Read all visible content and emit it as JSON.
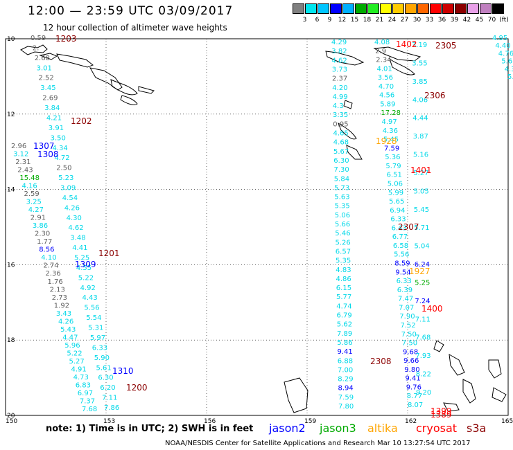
{
  "header": {
    "title": "12:00 — 23:59 UTC 03/09/2017",
    "subtitle": "12 hour collection of altimeter wave heights"
  },
  "scale": {
    "labels": [
      "3",
      "6",
      "9",
      "12",
      "15",
      "18",
      "21",
      "24",
      "27",
      "30",
      "33",
      "36",
      "39",
      "42",
      "45",
      "70"
    ],
    "unit": "(ft)",
    "colors": [
      "#808080",
      "#00e5ee",
      "#00c5ff",
      "#0000ff",
      "#00b0ff",
      "#00aa00",
      "#22ee22",
      "#ffff00",
      "#ffcc00",
      "#ffa500",
      "#ff6600",
      "#ff0000",
      "#cc0000",
      "#8b0000",
      "#e8a0e8",
      "#c080c0",
      "#000000"
    ]
  },
  "axes": {
    "lon_labels": [
      "150",
      "153",
      "156",
      "159",
      "162",
      "165"
    ],
    "lat_labels": [
      "10",
      "12",
      "14",
      "16",
      "18",
      "20"
    ]
  },
  "colors": {
    "jason2": "#0000ff",
    "jason3": "#00aa00",
    "altika": "#ffa500",
    "cryosat": "#ff0000",
    "s3a": "#8b0000",
    "cyan": "#00d8e8",
    "gray": "#606060"
  },
  "tracks": {
    "west": [
      {
        "v": "0.59",
        "c": "gray"
      },
      {
        "v": "2.",
        "c": "gray"
      },
      {
        "v": "2.68",
        "c": "gray"
      },
      {
        "v": "3.01",
        "c": "cyan"
      },
      {
        "v": "2.52",
        "c": "gray"
      },
      {
        "v": "3.45",
        "c": "cyan"
      },
      {
        "v": "2.69",
        "c": "gray"
      },
      {
        "v": "3.84",
        "c": "cyan"
      },
      {
        "v": "4.21",
        "c": "cyan"
      },
      {
        "v": "3.91",
        "c": "cyan"
      },
      {
        "v": "3.50",
        "c": "cyan"
      },
      {
        "v": "4.34",
        "c": "cyan"
      },
      {
        "v": "4.72",
        "c": "cyan"
      },
      {
        "v": "2.50",
        "c": "gray"
      },
      {
        "v": "5.23",
        "c": "cyan"
      },
      {
        "v": "3.09",
        "c": "cyan"
      },
      {
        "v": "4.54",
        "c": "cyan"
      },
      {
        "v": "4.26",
        "c": "cyan"
      },
      {
        "v": "4.30",
        "c": "cyan"
      },
      {
        "v": "4.62",
        "c": "cyan"
      },
      {
        "v": "3.48",
        "c": "cyan"
      },
      {
        "v": "4.41",
        "c": "cyan"
      },
      {
        "v": "5.25",
        "c": "cyan"
      },
      {
        "v": "4.55",
        "c": "cyan"
      },
      {
        "v": "5.22",
        "c": "cyan"
      },
      {
        "v": "4.92",
        "c": "cyan"
      },
      {
        "v": "4.43",
        "c": "cyan"
      },
      {
        "v": "5.56",
        "c": "cyan"
      },
      {
        "v": "5.54",
        "c": "cyan"
      },
      {
        "v": "5.31",
        "c": "cyan"
      },
      {
        "v": "5.97",
        "c": "cyan"
      },
      {
        "v": "6.33",
        "c": "cyan"
      },
      {
        "v": "5.90",
        "c": "cyan"
      },
      {
        "v": "5.61",
        "c": "cyan"
      },
      {
        "v": "6.30",
        "c": "cyan"
      },
      {
        "v": "6.20",
        "c": "cyan"
      },
      {
        "v": "7.11",
        "c": "cyan"
      },
      {
        "v": "7.86",
        "c": "cyan"
      }
    ],
    "west_left": [
      {
        "v": "2.96",
        "c": "gray"
      },
      {
        "v": "3.12",
        "c": "cyan"
      },
      {
        "v": "2.31",
        "c": "gray"
      },
      {
        "v": "2.43",
        "c": "gray"
      },
      {
        "v": "15.48",
        "c": "jason3"
      },
      {
        "v": "4.16",
        "c": "cyan"
      },
      {
        "v": "2.59",
        "c": "gray"
      },
      {
        "v": "3.25",
        "c": "cyan"
      },
      {
        "v": "4.27",
        "c": "cyan"
      },
      {
        "v": "2.91",
        "c": "gray"
      },
      {
        "v": "3.86",
        "c": "cyan"
      },
      {
        "v": "2.30",
        "c": "gray"
      },
      {
        "v": "1.77",
        "c": "gray"
      },
      {
        "v": "8.56",
        "c": "jason2"
      },
      {
        "v": "4.10",
        "c": "cyan"
      },
      {
        "v": "2.74",
        "c": "gray"
      },
      {
        "v": "2.36",
        "c": "gray"
      },
      {
        "v": "1.76",
        "c": "gray"
      },
      {
        "v": "2.13",
        "c": "gray"
      },
      {
        "v": "2.73",
        "c": "gray"
      },
      {
        "v": "1.92",
        "c": "gray"
      },
      {
        "v": "3.43",
        "c": "cyan"
      },
      {
        "v": "4.26",
        "c": "cyan"
      },
      {
        "v": "5.43",
        "c": "cyan"
      },
      {
        "v": "4.47",
        "c": "cyan"
      },
      {
        "v": "5.96",
        "c": "cyan"
      },
      {
        "v": "5.22",
        "c": "cyan"
      },
      {
        "v": "5.27",
        "c": "cyan"
      },
      {
        "v": "4.91",
        "c": "cyan"
      },
      {
        "v": "4.73",
        "c": "cyan"
      },
      {
        "v": "6.83",
        "c": "cyan"
      },
      {
        "v": "6.97",
        "c": "cyan"
      },
      {
        "v": "7.37",
        "c": "cyan"
      },
      {
        "v": "7.68",
        "c": "cyan"
      }
    ],
    "east_left": [
      {
        "v": "4.29",
        "c": "cyan"
      },
      {
        "v": "3.82",
        "c": "cyan"
      },
      {
        "v": "4.62",
        "c": "cyan"
      },
      {
        "v": "3.73",
        "c": "cyan"
      },
      {
        "v": "2.37",
        "c": "gray"
      },
      {
        "v": "4.20",
        "c": "cyan"
      },
      {
        "v": "4.99",
        "c": "cyan"
      },
      {
        "v": "4.3",
        "c": "cyan"
      },
      {
        "v": "3.35",
        "c": "cyan"
      },
      {
        "v": "0.95",
        "c": "gray"
      },
      {
        "v": "4.65",
        "c": "cyan"
      },
      {
        "v": "4.68",
        "c": "cyan"
      },
      {
        "v": "5.67",
        "c": "cyan"
      },
      {
        "v": "6.30",
        "c": "cyan"
      },
      {
        "v": "7.30",
        "c": "cyan"
      },
      {
        "v": "5.84",
        "c": "cyan"
      },
      {
        "v": "5.73",
        "c": "cyan"
      },
      {
        "v": "5.63",
        "c": "cyan"
      },
      {
        "v": "5.35",
        "c": "cyan"
      },
      {
        "v": "5.06",
        "c": "cyan"
      },
      {
        "v": "5.66",
        "c": "cyan"
      },
      {
        "v": "5.46",
        "c": "cyan"
      },
      {
        "v": "5.26",
        "c": "cyan"
      },
      {
        "v": "6.57",
        "c": "cyan"
      },
      {
        "v": "5.35",
        "c": "cyan"
      },
      {
        "v": "4.83",
        "c": "cyan"
      },
      {
        "v": "4.86",
        "c": "cyan"
      },
      {
        "v": "6.15",
        "c": "cyan"
      },
      {
        "v": "5.77",
        "c": "cyan"
      },
      {
        "v": "4.74",
        "c": "cyan"
      },
      {
        "v": "6.79",
        "c": "cyan"
      },
      {
        "v": "5.62",
        "c": "cyan"
      },
      {
        "v": "7.89",
        "c": "cyan"
      },
      {
        "v": "5.86",
        "c": "cyan"
      },
      {
        "v": "9.41",
        "c": "jason2"
      },
      {
        "v": "6.88",
        "c": "cyan"
      },
      {
        "v": "7.00",
        "c": "cyan"
      },
      {
        "v": "8.29",
        "c": "cyan"
      },
      {
        "v": "8.94",
        "c": "jason2"
      },
      {
        "v": "7.59",
        "c": "cyan"
      },
      {
        "v": "7.80",
        "c": "cyan"
      }
    ],
    "east_right": [
      {
        "v": "4.08",
        "c": "cyan"
      },
      {
        "v": "2.9",
        "c": "gray"
      },
      {
        "v": "2.34",
        "c": "gray"
      },
      {
        "v": "4.01",
        "c": "cyan"
      },
      {
        "v": "3.56",
        "c": "cyan"
      },
      {
        "v": "4.70",
        "c": "cyan"
      },
      {
        "v": "4.56",
        "c": "cyan"
      },
      {
        "v": "5.89",
        "c": "cyan"
      },
      {
        "v": "17.28",
        "c": "jason3"
      },
      {
        "v": "4.97",
        "c": "cyan"
      },
      {
        "v": "4.36",
        "c": "cyan"
      },
      {
        "v": "5.45",
        "c": "cyan"
      },
      {
        "v": "7.59",
        "c": "jason2"
      },
      {
        "v": "5.36",
        "c": "cyan"
      },
      {
        "v": "5.79",
        "c": "cyan"
      },
      {
        "v": "6.51",
        "c": "cyan"
      },
      {
        "v": "5.06",
        "c": "cyan"
      },
      {
        "v": "5.99",
        "c": "cyan"
      },
      {
        "v": "5.65",
        "c": "cyan"
      },
      {
        "v": "6.94",
        "c": "cyan"
      },
      {
        "v": "6.33",
        "c": "cyan"
      },
      {
        "v": "6.43",
        "c": "cyan"
      },
      {
        "v": "6.77",
        "c": "cyan"
      },
      {
        "v": "6.58",
        "c": "cyan"
      },
      {
        "v": "5.56",
        "c": "cyan"
      },
      {
        "v": "8.59",
        "c": "jason2"
      },
      {
        "v": "9.54",
        "c": "jason2"
      },
      {
        "v": "6.33",
        "c": "cyan"
      },
      {
        "v": "6.39",
        "c": "cyan"
      },
      {
        "v": "7.47",
        "c": "cyan"
      },
      {
        "v": "7.07",
        "c": "cyan"
      },
      {
        "v": "7.90",
        "c": "cyan"
      },
      {
        "v": "7.52",
        "c": "cyan"
      },
      {
        "v": "7.50",
        "c": "cyan"
      },
      {
        "v": "7.50",
        "c": "cyan"
      },
      {
        "v": "9.68",
        "c": "jason2"
      },
      {
        "v": "9.66",
        "c": "jason2"
      },
      {
        "v": "9.80",
        "c": "jason2"
      },
      {
        "v": "9.41",
        "c": "jason2"
      },
      {
        "v": "9.76",
        "c": "jason2"
      },
      {
        "v": "8.77",
        "c": "cyan"
      },
      {
        "v": "8.07",
        "c": "cyan"
      }
    ],
    "east_far": [
      {
        "v": "3.19",
        "c": "cyan"
      },
      {
        "v": "3.55",
        "c": "cyan"
      },
      {
        "v": "3.85",
        "c": "cyan"
      },
      {
        "v": "4.06",
        "c": "cyan"
      },
      {
        "v": "4.44",
        "c": "cyan"
      },
      {
        "v": "3.87",
        "c": "cyan"
      },
      {
        "v": "5.16",
        "c": "cyan"
      },
      {
        "v": "5.27",
        "c": "cyan"
      },
      {
        "v": "5.05",
        "c": "cyan"
      },
      {
        "v": "5.45",
        "c": "cyan"
      },
      {
        "v": "5.71",
        "c": "cyan"
      },
      {
        "v": "5.04",
        "c": "cyan"
      },
      {
        "v": "6.24",
        "c": "jason2"
      },
      {
        "v": "5.25",
        "c": "jason3"
      },
      {
        "v": "7.24",
        "c": "jason2"
      },
      {
        "v": "7.11",
        "c": "cyan"
      },
      {
        "v": "7.68",
        "c": "cyan"
      },
      {
        "v": "7.93",
        "c": "cyan"
      },
      {
        "v": "8.22",
        "c": "cyan"
      },
      {
        "v": "9.20",
        "c": "cyan"
      }
    ],
    "far_right": [
      {
        "v": "4.95",
        "c": "cyan"
      },
      {
        "v": "4.40",
        "c": "cyan"
      },
      {
        "v": "4.76",
        "c": "cyan"
      },
      {
        "v": "5.6",
        "c": "cyan"
      },
      {
        "v": "4.3",
        "c": "cyan"
      },
      {
        "v": "5.",
        "c": "cyan"
      }
    ]
  },
  "passes": [
    {
      "id": "1203",
      "c": "s3a"
    },
    {
      "id": "1202",
      "c": "s3a"
    },
    {
      "id": "1307",
      "c": "jason2"
    },
    {
      "id": "1308",
      "c": "jason2"
    },
    {
      "id": "1201",
      "c": "s3a"
    },
    {
      "id": "1309",
      "c": "jason2"
    },
    {
      "id": "1310",
      "c": "jason2"
    },
    {
      "id": "1200",
      "c": "s3a"
    },
    {
      "id": "1402",
      "c": "cryosat"
    },
    {
      "id": "2305",
      "c": "s3a"
    },
    {
      "id": "2306",
      "c": "s3a"
    },
    {
      "id": "1928",
      "c": "altika"
    },
    {
      "id": "1401",
      "c": "cryosat"
    },
    {
      "id": "2307",
      "c": "s3a"
    },
    {
      "id": "1927",
      "c": "altika"
    },
    {
      "id": "1400",
      "c": "cryosat"
    },
    {
      "id": "2308",
      "c": "s3a"
    },
    {
      "id": "1399",
      "c": "cryosat"
    },
    {
      "id": "1389",
      "c": "cryosat"
    }
  ],
  "footer": {
    "note": "note:  1) Time is in UTC;  2) SWH is in feet",
    "jason2": "jason2",
    "jason3": "jason3",
    "altika": "altika",
    "cryosat": "cryosat",
    "s3a": "s3a",
    "credit": "NOAA/NESDIS Center for Satellite Applications and Research     Mar 10 13:27:54 UTC 2017"
  }
}
